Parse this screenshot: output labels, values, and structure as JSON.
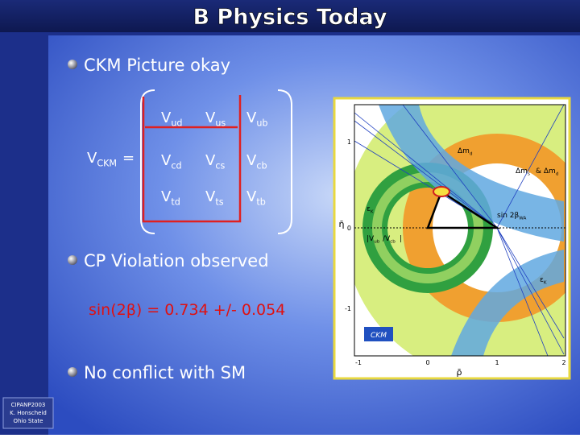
{
  "title": "B Physics Today",
  "bullets": [
    "CKM Picture okay",
    "CP Violation observed",
    "No conflict with SM"
  ],
  "matrix": {
    "label": {
      "base": "V",
      "sub": "CKM"
    },
    "equals": "=",
    "cells": [
      [
        {
          "base": "V",
          "sub": "ud"
        },
        {
          "base": "V",
          "sub": "us"
        },
        {
          "base": "V",
          "sub": "ub"
        }
      ],
      [
        {
          "base": "V",
          "sub": "cd"
        },
        {
          "base": "V",
          "sub": "cs"
        },
        {
          "base": "V",
          "sub": "cb"
        }
      ],
      [
        {
          "base": "V",
          "sub": "td"
        },
        {
          "base": "V",
          "sub": "ts"
        },
        {
          "base": "V",
          "sub": "tb"
        }
      ]
    ]
  },
  "formula": "sin(2β) = 0.734 +/- 0.054",
  "footer": [
    "CIPANP2003",
    "K. Honscheid",
    "Ohio State"
  ],
  "figure": {
    "x_ticks": [
      "-1",
      "0",
      "1",
      "2"
    ],
    "y_ticks": [
      "1",
      "0",
      "-1"
    ],
    "x_label": "ρ̄",
    "y_label": "η̄",
    "labels": [
      {
        "base": "Δm",
        "sub": "d"
      },
      {
        "base": "Δm",
        "sub": "s"
      },
      {
        "base": "& Δm",
        "sub": "d"
      },
      {
        "base": "ε",
        "sub": "K"
      },
      {
        "base": "sin 2β",
        "sub": "WA"
      },
      {
        "base": "|V",
        "sub": "ub"
      },
      {
        "base": "/V",
        "sub": "cb"
      },
      {
        "base": "|",
        "sub": ""
      },
      {
        "base": "ε",
        "sub": "K"
      }
    ],
    "logo": "CKM"
  }
}
